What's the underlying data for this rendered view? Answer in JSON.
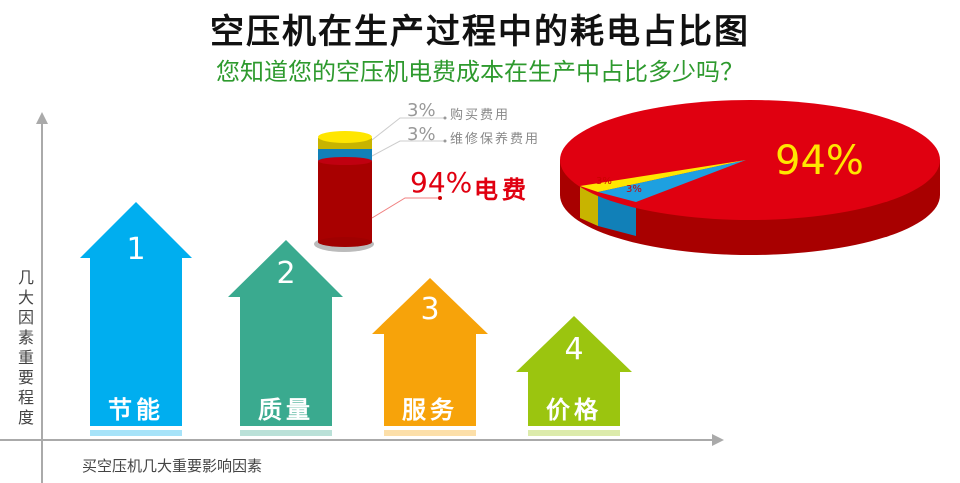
{
  "title": "空压机在生产过程中的耗电占比图",
  "subtitle": "您知道您的空压机电费成本在生产中占比多少吗？",
  "y_axis_label": "几大因素重要程度",
  "x_axis_label": "买空压机几大重要影响因素",
  "factors": [
    {
      "rank": "1",
      "label": "节能",
      "color": "#00aeef"
    },
    {
      "rank": "2",
      "label": "质量",
      "color": "#3aaa8f"
    },
    {
      "rank": "3",
      "label": "服务",
      "color": "#f7a30a"
    },
    {
      "rank": "4",
      "label": "价格",
      "color": "#9bc50f"
    }
  ],
  "cylinder_legend": [
    {
      "pct": "3%",
      "label": "购买费用",
      "color": "#c8b400"
    },
    {
      "pct": "3%",
      "label": "维修保养费用",
      "color": "#1180b8"
    },
    {
      "pct": "94%",
      "label": "电费",
      "color": "#b00000"
    }
  ],
  "chart_data": {
    "type": "pie",
    "style": "3d",
    "slices": [
      {
        "label": "电费",
        "value": 94,
        "display": "94%",
        "color": "#e00010"
      },
      {
        "label": "购买费用",
        "value": 3,
        "display": "3%",
        "color": "#ffe600"
      },
      {
        "label": "维修保养费用",
        "value": 3,
        "display": "3%",
        "color": "#1ea0e0"
      }
    ]
  }
}
